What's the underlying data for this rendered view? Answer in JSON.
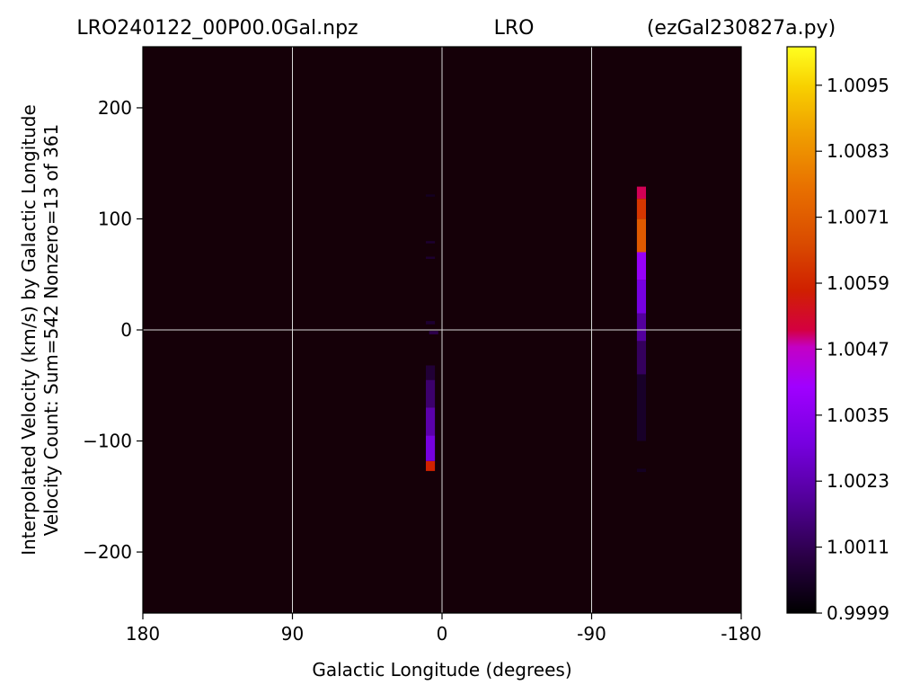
{
  "chart_data": {
    "type": "heatmap",
    "title_left": "LRO240122_00P00.0Gal.npz",
    "title_center": "LRO",
    "title_right": "(ezGal230827a.py)",
    "xlabel": "Galactic Longitude (degrees)",
    "ylabel_line1": "Interpolated Velocity (km/s) by Galactic Longitude",
    "ylabel_line2": "Velocity Count: Sum=542 Nonzero=13 of 361",
    "xlim": [
      180,
      -180
    ],
    "ylim": [
      -255,
      255
    ],
    "x_ticks": [
      180,
      90,
      0,
      -90,
      -180
    ],
    "x_tick_labels": [
      "180",
      "90",
      "0",
      "-90",
      "-180"
    ],
    "y_ticks": [
      -200,
      -100,
      0,
      100,
      200
    ],
    "y_tick_labels": [
      "−200",
      "−100",
      "0",
      "100",
      "200"
    ],
    "grid": true,
    "colormap": "gnuplot",
    "background_color": "#150008",
    "colorbar": {
      "vmin": 0.9999,
      "vmax": 1.0102,
      "ticks": [
        0.9999,
        1.0011,
        1.0023,
        1.0035,
        1.0047,
        1.0059,
        1.0071,
        1.0083,
        1.0095
      ],
      "tick_labels": [
        "0.9999",
        "1.0011",
        "1.0023",
        "1.0035",
        "1.0047",
        "1.0059",
        "1.0071",
        "1.0083",
        "1.0095"
      ]
    },
    "cells": [
      {
        "longitude": 7,
        "v_min": -127,
        "v_max": -118,
        "value": 1.0058
      },
      {
        "longitude": 7,
        "v_min": -118,
        "v_max": -95,
        "value": 1.003
      },
      {
        "longitude": 7,
        "v_min": -95,
        "v_max": -70,
        "value": 1.0022
      },
      {
        "longitude": 7,
        "v_min": -70,
        "v_max": -45,
        "value": 1.0014
      },
      {
        "longitude": 7,
        "v_min": -45,
        "v_max": -32,
        "value": 1.0007
      },
      {
        "longitude": 7,
        "v_min": 5,
        "v_max": 8,
        "value": 1.0006
      },
      {
        "longitude": 7,
        "v_min": 64,
        "v_max": 66,
        "value": 1.0006
      },
      {
        "longitude": 7,
        "v_min": 78,
        "v_max": 80,
        "value": 1.0006
      },
      {
        "longitude": 7,
        "v_min": 120,
        "v_max": 122,
        "value": 1.0004
      },
      {
        "longitude": 5,
        "v_min": -4,
        "v_max": -1,
        "value": 1.001
      },
      {
        "longitude": -120,
        "v_min": 118,
        "v_max": 129,
        "value": 1.005
      },
      {
        "longitude": -120,
        "v_min": 100,
        "v_max": 118,
        "value": 1.0062
      },
      {
        "longitude": -120,
        "v_min": 70,
        "v_max": 100,
        "value": 1.007
      },
      {
        "longitude": -120,
        "v_min": 45,
        "v_max": 70,
        "value": 1.0038
      },
      {
        "longitude": -120,
        "v_min": 15,
        "v_max": 45,
        "value": 1.003
      },
      {
        "longitude": -120,
        "v_min": -10,
        "v_max": 15,
        "value": 1.002
      },
      {
        "longitude": -120,
        "v_min": -40,
        "v_max": -10,
        "value": 1.0012
      },
      {
        "longitude": -120,
        "v_min": -100,
        "v_max": -40,
        "value": 1.0005
      },
      {
        "longitude": -120,
        "v_min": -128,
        "v_max": -125,
        "value": 1.0004
      }
    ]
  }
}
